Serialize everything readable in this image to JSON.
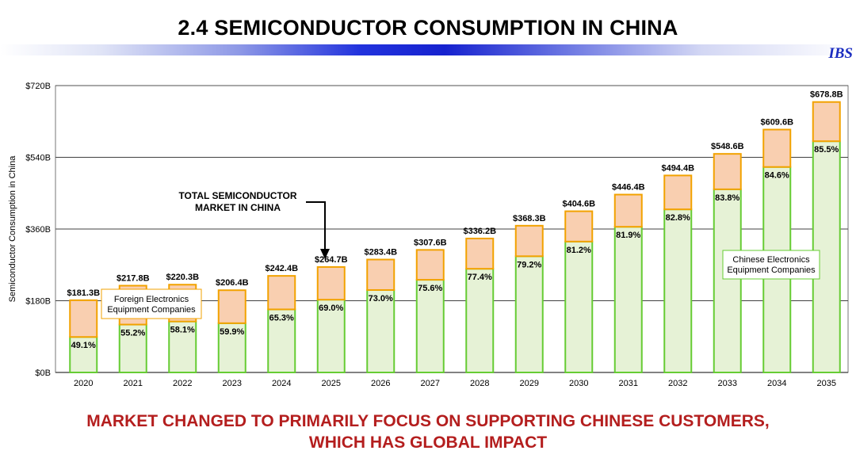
{
  "slide": {
    "title": "2.4  SEMICONDUCTOR CONSUMPTION IN CHINA",
    "brand": "IBS",
    "footer_line1": "MARKET CHANGED TO PRIMARILY FOCUS ON SUPPORTING CHINESE CUSTOMERS,",
    "footer_line2": "WHICH HAS GLOBAL IMPACT"
  },
  "colors": {
    "foreign_fill": "#f9cfb0",
    "foreign_stroke": "#f2a200",
    "chinese_fill": "#e6f2d6",
    "chinese_stroke": "#66cc33",
    "gridline": "#000000",
    "title_band": "#1622cf",
    "footer_text": "#b41e1e"
  },
  "chart_data": {
    "type": "bar",
    "stacked": true,
    "ylabel": "Semiconductor Consumption in China",
    "ylim": [
      0,
      720
    ],
    "yticks": [
      0,
      180,
      360,
      540,
      720
    ],
    "ytick_labels": [
      "$0B",
      "$180B",
      "$360B",
      "$540B",
      "$720B"
    ],
    "gridlines": "horizontal",
    "categories": [
      "2020",
      "2021",
      "2022",
      "2023",
      "2024",
      "2025",
      "2026",
      "2027",
      "2028",
      "2029",
      "2030",
      "2031",
      "2032",
      "2033",
      "2034",
      "2035"
    ],
    "totals": [
      181.3,
      217.8,
      220.3,
      206.4,
      242.4,
      264.7,
      283.4,
      307.6,
      336.2,
      368.3,
      404.6,
      446.4,
      494.4,
      548.6,
      609.6,
      678.8
    ],
    "total_labels": [
      "$181.3B",
      "$217.8B",
      "$220.3B",
      "$206.4B",
      "$242.4B",
      "$264.7B",
      "$283.4B",
      "$307.6B",
      "$336.2B",
      "$368.3B",
      "$404.6B",
      "$446.4B",
      "$494.4B",
      "$548.6B",
      "$609.6B",
      "$678.8B"
    ],
    "chinese_share_pct": [
      49.1,
      55.2,
      58.1,
      59.9,
      65.3,
      69.0,
      73.0,
      75.6,
      77.4,
      79.2,
      81.2,
      81.9,
      82.8,
      83.8,
      84.6,
      85.5
    ],
    "share_labels": [
      "49.1%",
      "55.2%",
      "58.1%",
      "59.9%",
      "65.3%",
      "69.0%",
      "73.0%",
      "75.6%",
      "77.4%",
      "79.2%",
      "81.2%",
      "81.9%",
      "82.8%",
      "83.8%",
      "84.6%",
      "85.5%"
    ],
    "series": [
      {
        "name": "Chinese Electronics Equipment  Companies",
        "role": "bottom"
      },
      {
        "name": "Foreign Electronics Equipment Companies",
        "role": "top"
      }
    ],
    "annotations": {
      "market_line1": "TOTAL SEMICONDUCTOR",
      "market_line2": "MARKET IN CHINA",
      "foreign_line1": "Foreign Electronics",
      "foreign_line2": "Equipment Companies",
      "chinese_line1": "Chinese Electronics",
      "chinese_line2": "Equipment  Companies"
    }
  }
}
